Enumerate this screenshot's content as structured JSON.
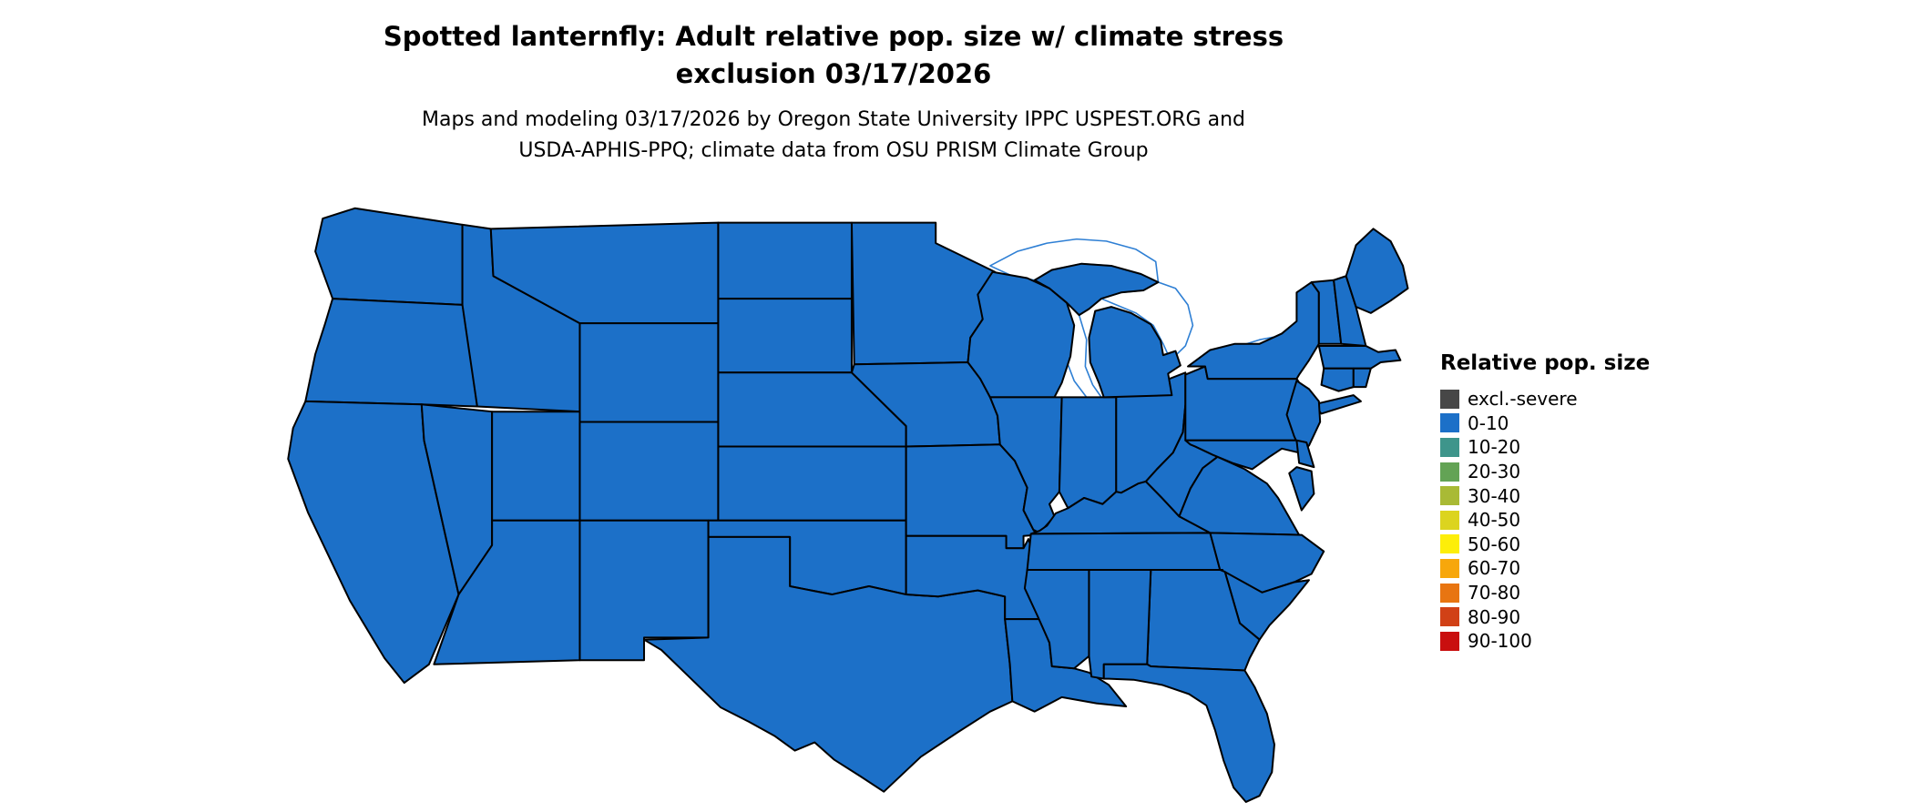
{
  "title": {
    "line1": "Spotted lanternfly: Adult relative pop. size w/ climate stress",
    "line2": "exclusion 03/17/2026"
  },
  "subtitle": {
    "line1": "Maps and modeling 03/17/2026 by Oregon State University IPPC USPEST.ORG and",
    "line2": "USDA-APHIS-PPQ; climate data from OSU PRISM Climate Group"
  },
  "legend": {
    "title": "Relative pop. size",
    "items": [
      {
        "label": "excl.-severe",
        "color": "#474747"
      },
      {
        "label": "0-10",
        "color": "#1c70c8"
      },
      {
        "label": "10-20",
        "color": "#3e958b"
      },
      {
        "label": "20-30",
        "color": "#63a355"
      },
      {
        "label": "30-40",
        "color": "#a9ba35"
      },
      {
        "label": "40-50",
        "color": "#dcd41f"
      },
      {
        "label": "50-60",
        "color": "#fdee09"
      },
      {
        "label": "60-70",
        "color": "#f7a70b"
      },
      {
        "label": "70-80",
        "color": "#e87511"
      },
      {
        "label": "80-90",
        "color": "#d14116"
      },
      {
        "label": "90-100",
        "color": "#c90f0f"
      }
    ]
  },
  "map": {
    "fill_color": "#1c70c8",
    "border_color": "#000000",
    "water_color": "#2e7fd4",
    "fill_category": "0-10",
    "region": "Continental United States"
  }
}
